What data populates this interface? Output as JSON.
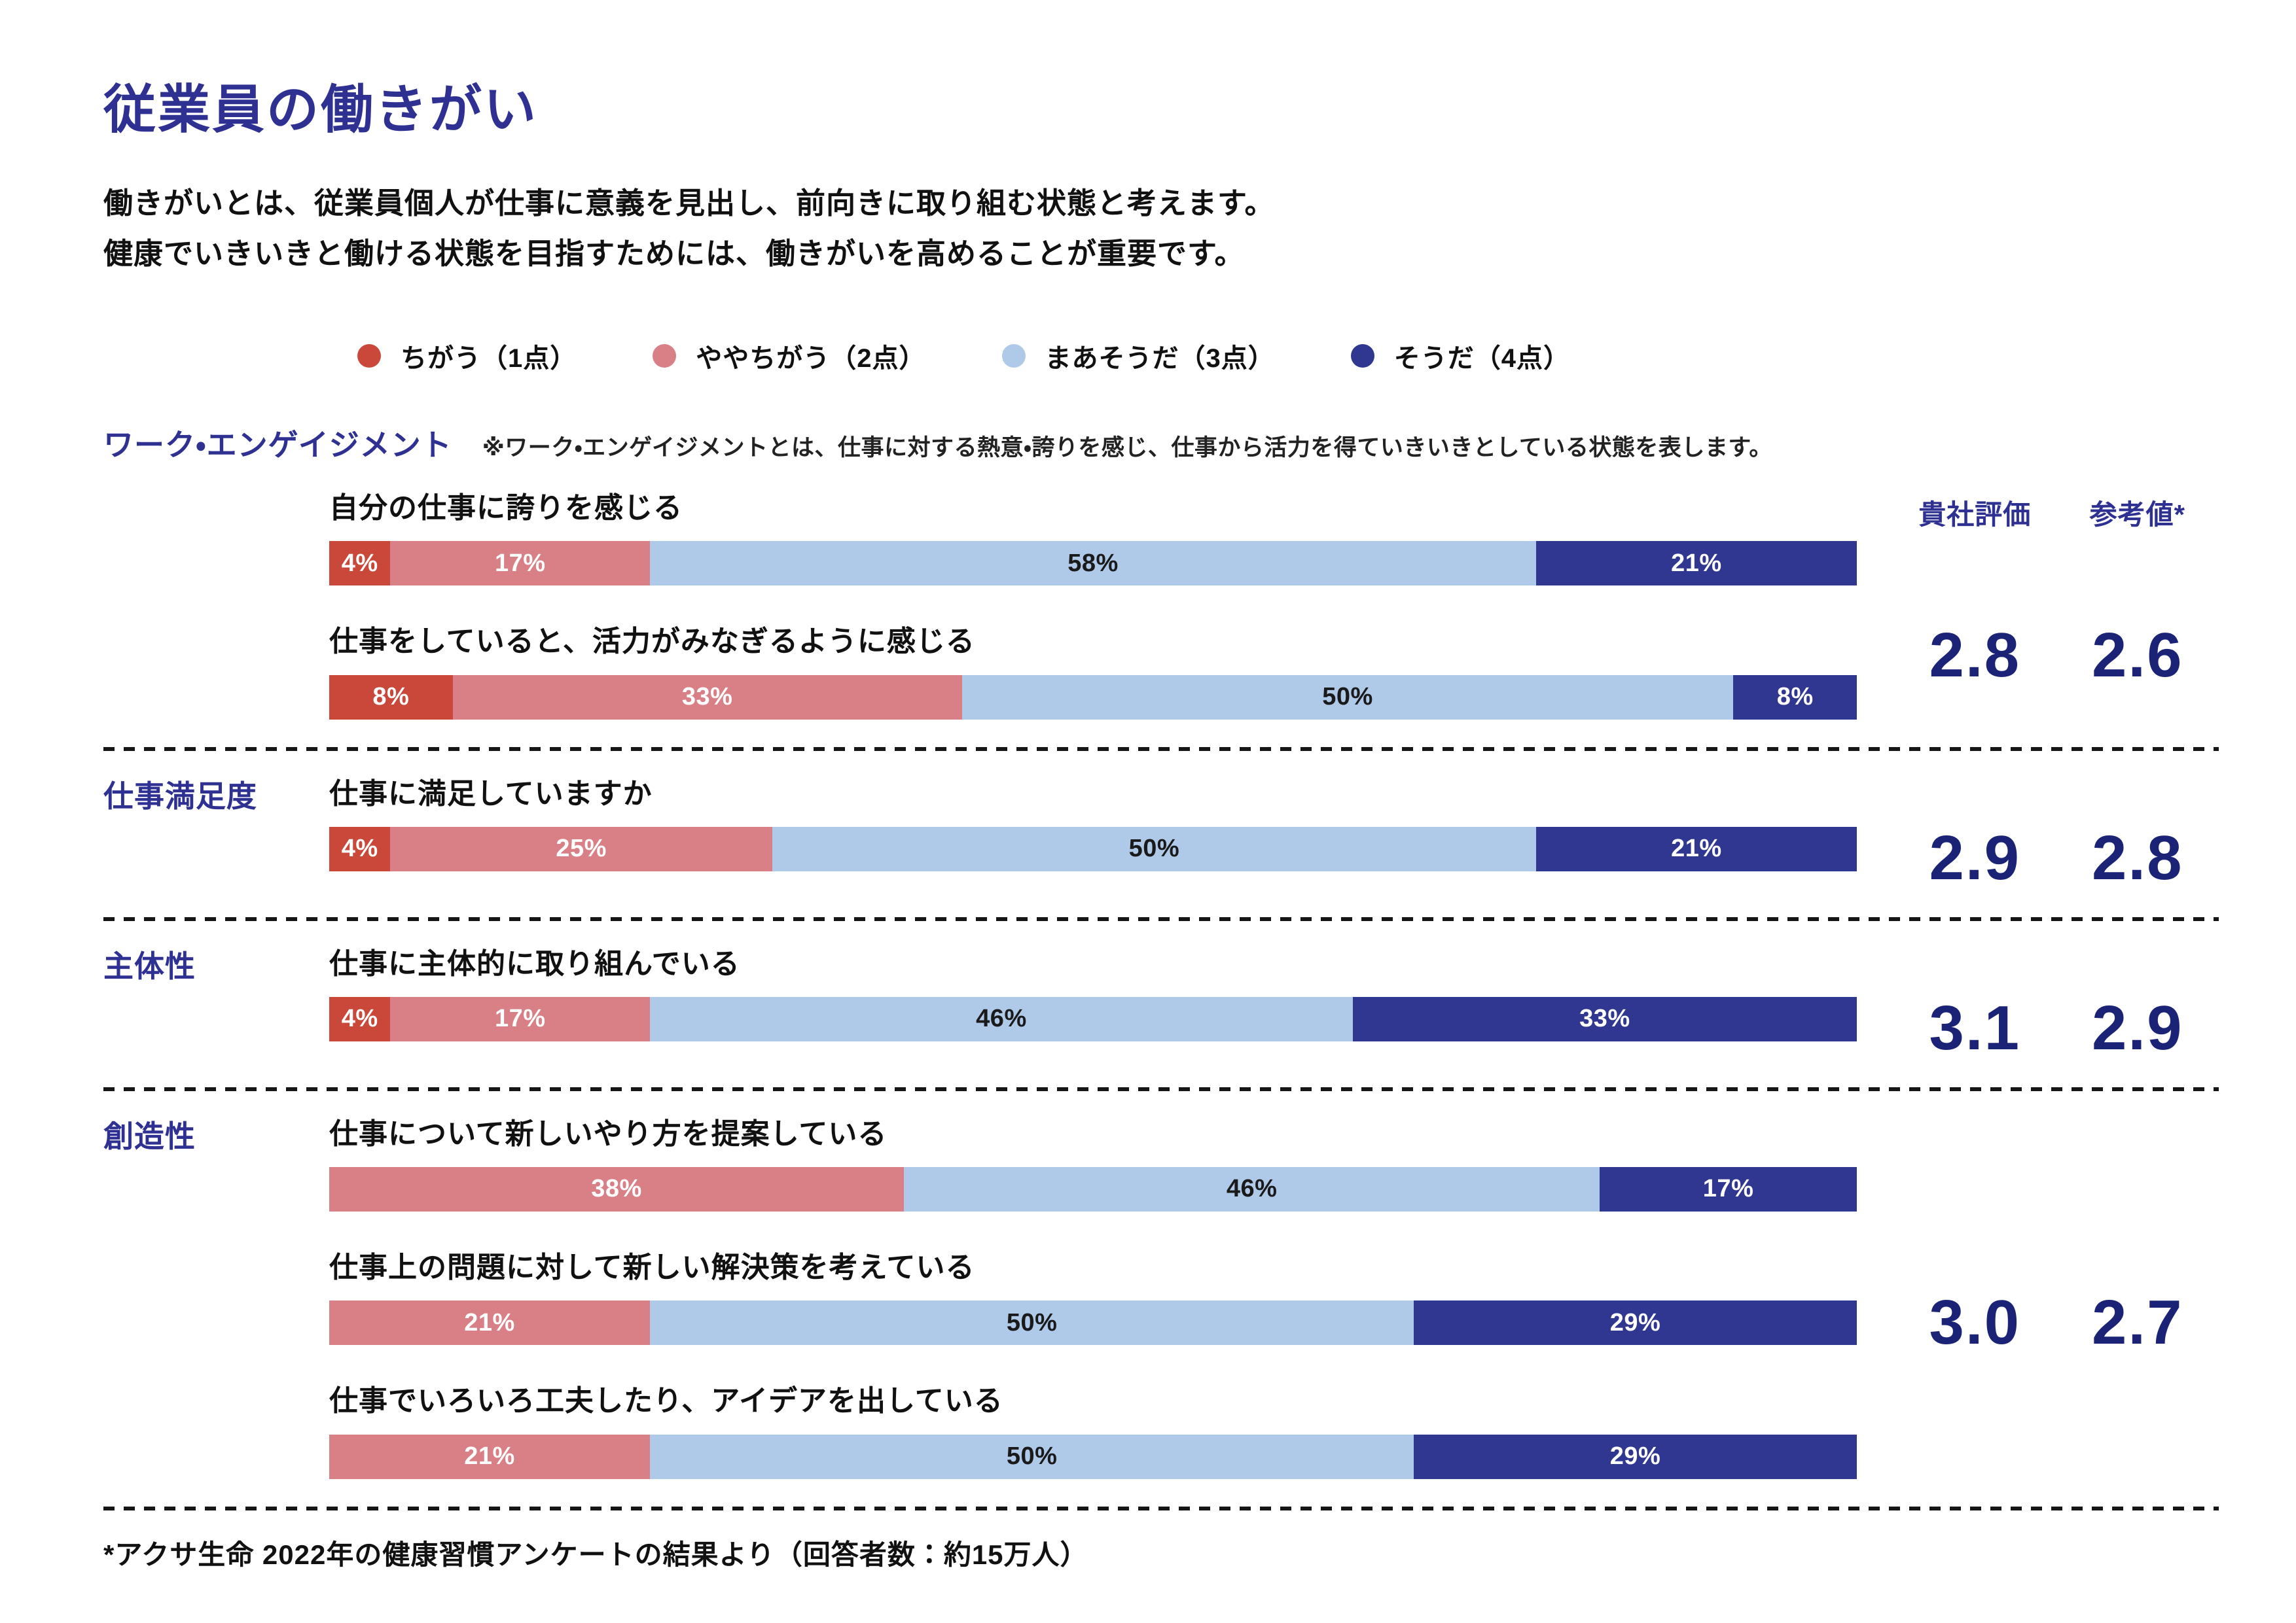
{
  "page": {
    "title": "従業員の働きがい",
    "description_lines": [
      "働きがいとは、従業員個人が仕事に意義を見出し、前向きに取り組む状態と考えます。",
      "健康でいきいきと働ける状態を目指すためには、働きがいを高めることが重要です。"
    ],
    "footnote": "*アクサ生命 2022年の健康習慣アンケートの結果より（回答者数：約15万人）"
  },
  "colors": {
    "title_navy": "#2E3192",
    "score_navy": "#1B2376",
    "body_text": "#111111"
  },
  "chart_data": {
    "type": "bar",
    "variant": "horizontal-stacked-percent",
    "unit": "%",
    "axis_range": [
      0,
      100
    ],
    "grid": false,
    "legend_position": "top",
    "legend": [
      {
        "label": "ちがう（1点）",
        "color": "#C9483A",
        "value_text_color": "#FFFFFF"
      },
      {
        "label": "ややちがう（2点）",
        "color": "#D98087",
        "value_text_color": "#FFFFFF"
      },
      {
        "label": "まあそうだ（3点）",
        "color": "#AFC9E8",
        "value_text_color": "#1A1A1A"
      },
      {
        "label": "そうだ（4点）",
        "color": "#303790",
        "value_text_color": "#FFFFFF"
      }
    ],
    "score_columns": [
      "貴社評価",
      "参考値*"
    ],
    "sections": [
      {
        "label": "ワーク・エンゲイジメント",
        "note": "※ワーク・エンゲイジメントとは、仕事に対する熱意・誇りを感じ、仕事から活力を得ていきいきとしている状態を表します。",
        "company_score": "2.8",
        "reference_score": "2.6",
        "questions": [
          {
            "text": "自分の仕事に誇りを感じる",
            "values": [
              4,
              17,
              58,
              21
            ]
          },
          {
            "text": "仕事をしていると、活力がみなぎるように感じる",
            "values": [
              8,
              33,
              50,
              8
            ]
          }
        ]
      },
      {
        "label": "仕事満足度",
        "note": "",
        "company_score": "2.9",
        "reference_score": "2.8",
        "questions": [
          {
            "text": "仕事に満足していますか",
            "values": [
              4,
              25,
              50,
              21
            ]
          }
        ]
      },
      {
        "label": "主体性",
        "note": "",
        "company_score": "3.1",
        "reference_score": "2.9",
        "questions": [
          {
            "text": "仕事に主体的に取り組んでいる",
            "values": [
              4,
              17,
              46,
              33
            ]
          }
        ]
      },
      {
        "label": "創造性",
        "note": "",
        "company_score": "3.0",
        "reference_score": "2.7",
        "questions": [
          {
            "text": "仕事について新しいやり方を提案している",
            "values": [
              0,
              38,
              46,
              17
            ]
          },
          {
            "text": "仕事上の問題に対して新しい解決策を考えている",
            "values": [
              0,
              21,
              50,
              29
            ]
          },
          {
            "text": "仕事でいろいろ工夫したり、アイデアを出している",
            "values": [
              0,
              21,
              50,
              29
            ]
          }
        ]
      }
    ]
  }
}
